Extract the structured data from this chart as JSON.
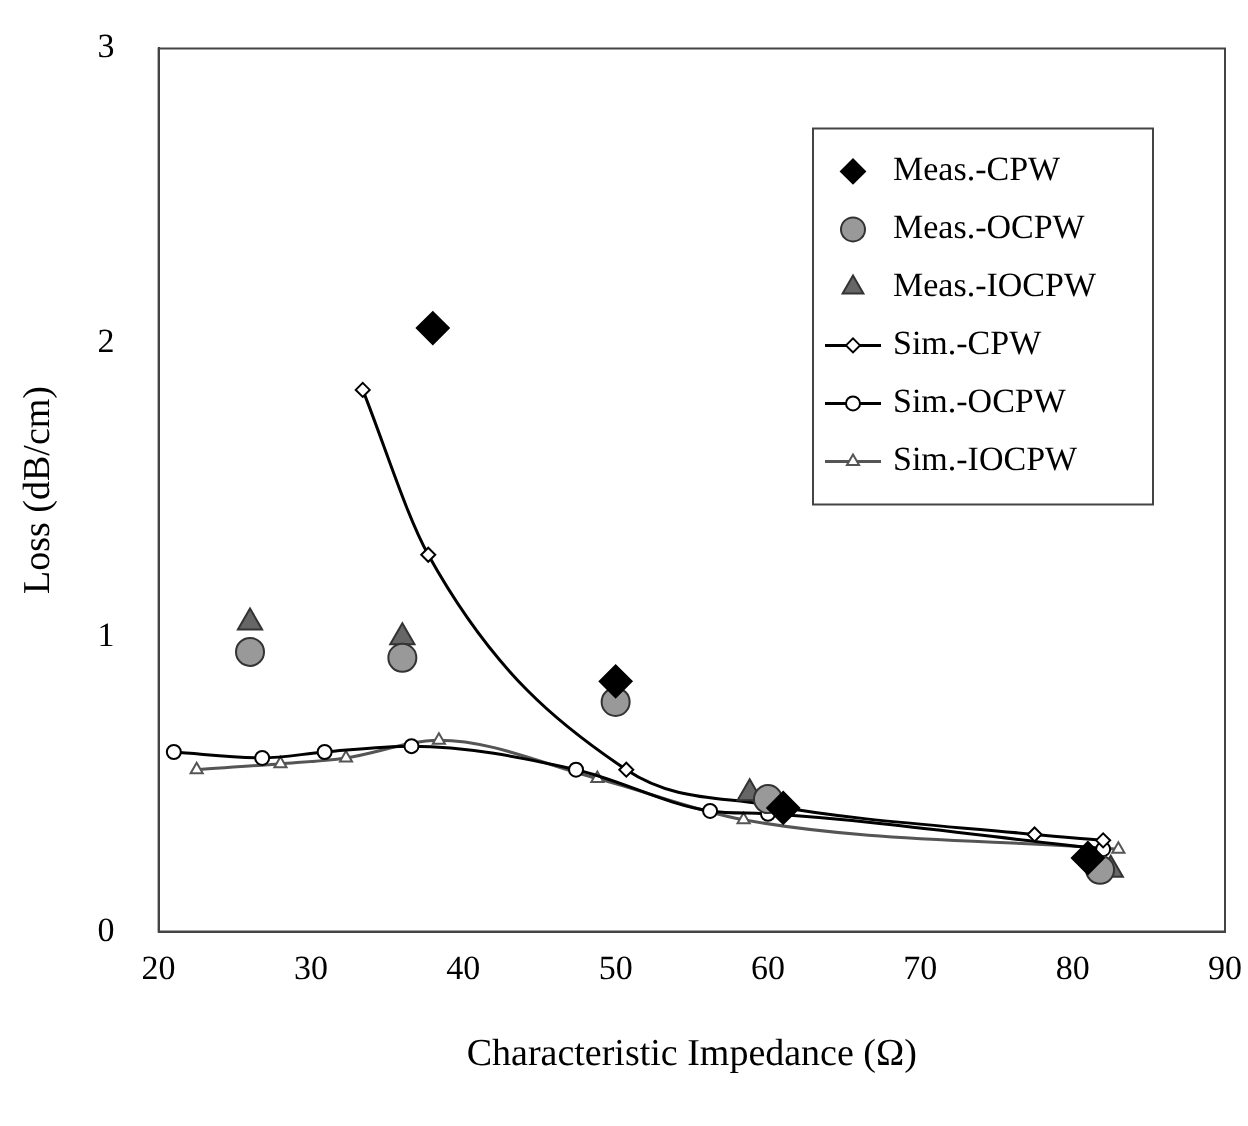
{
  "chart_data": {
    "type": "scatter",
    "xlabel": "Characteristic Impedance (Ω)",
    "ylabel": "Loss (dB/cm)",
    "xlim": [
      20,
      90
    ],
    "xticks": [
      20,
      30,
      40,
      50,
      60,
      70,
      80,
      90
    ],
    "ylim": [
      0,
      3
    ],
    "yticks": [
      0,
      1,
      2,
      3
    ],
    "grid": false,
    "legend": "top right",
    "series": [
      {
        "name": "Meas.-CPW",
        "type": "scatter",
        "marker": "diamond",
        "color": "#000000",
        "x": [
          38,
          50,
          61,
          81
        ],
        "values": [
          2.05,
          0.85,
          0.42,
          0.25
        ]
      },
      {
        "name": "Meas.-OCPW",
        "type": "scatter",
        "marker": "circle",
        "color": "#999999",
        "x": [
          26,
          36,
          50,
          60,
          81.8
        ],
        "values": [
          0.95,
          0.93,
          0.78,
          0.45,
          0.21
        ]
      },
      {
        "name": "Meas.-IOCPW",
        "type": "scatter",
        "marker": "triangle",
        "color": "#666666",
        "x": [
          26,
          36,
          50,
          58.8,
          82.5
        ],
        "values": [
          1.05,
          1.0,
          null,
          0.47,
          0.21
        ]
      },
      {
        "name": "Sim.-CPW",
        "type": "line",
        "marker": "diamond",
        "color": "#000000",
        "x": [
          33.4,
          37.7,
          50.7,
          60,
          77.5,
          82
        ],
        "values": [
          1.84,
          1.28,
          0.55,
          0.43,
          0.33,
          0.31
        ]
      },
      {
        "name": "Sim.-OCPW",
        "type": "line",
        "marker": "circle",
        "color": "#000000",
        "x": [
          21,
          26.8,
          30.9,
          36.6,
          47.4,
          56.2,
          60,
          82
        ],
        "values": [
          0.61,
          0.59,
          0.61,
          0.63,
          0.55,
          0.41,
          0.4,
          0.28
        ]
      },
      {
        "name": "Sim.-IOCPW",
        "type": "line",
        "marker": "triangle",
        "color": "#555555",
        "x": [
          22.5,
          28,
          32.3,
          38.4,
          48.8,
          58.4,
          83
        ],
        "values": [
          0.55,
          0.57,
          0.59,
          0.65,
          0.52,
          0.38,
          0.28
        ]
      }
    ]
  }
}
